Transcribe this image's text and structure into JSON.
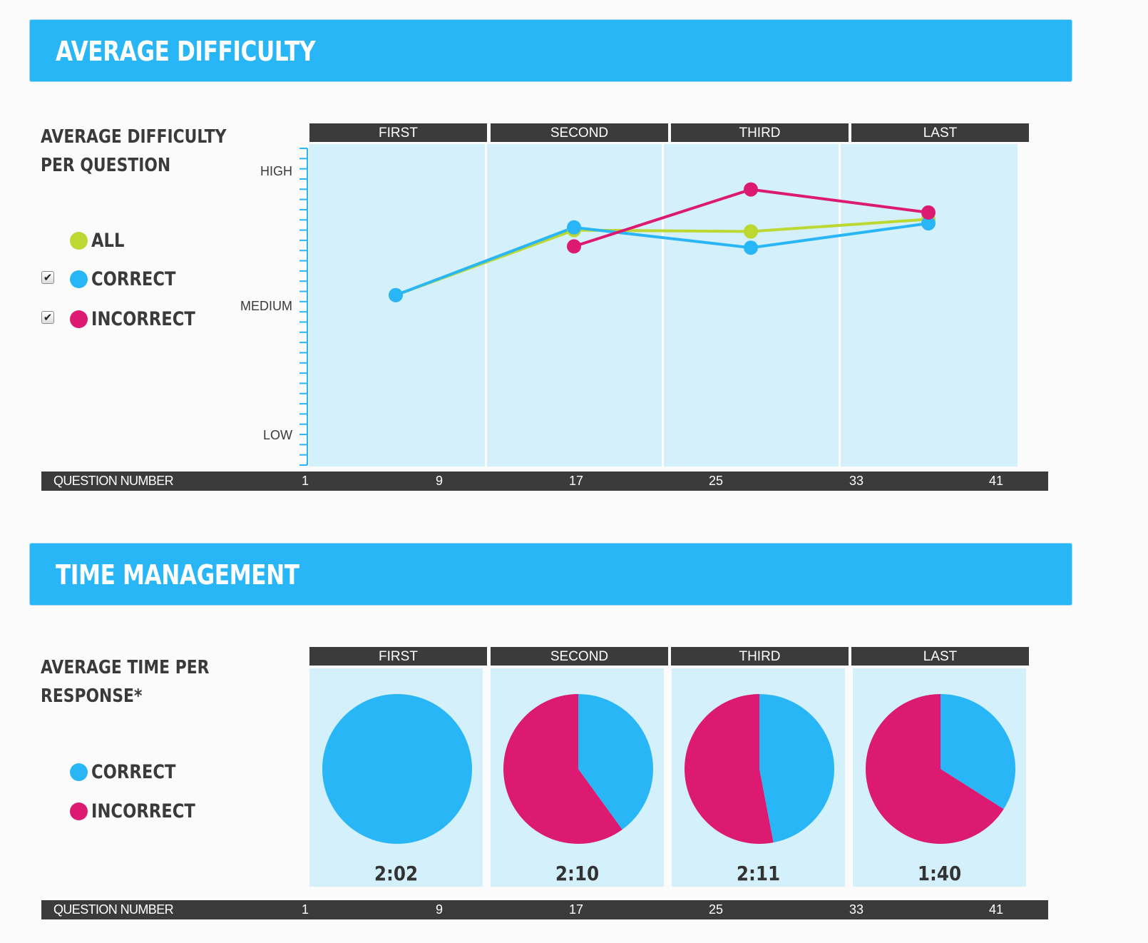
{
  "colors": {
    "all": "#bcd831",
    "correct": "#29b6f6",
    "incorrect": "#dc1a72",
    "banner": "#29b6f6",
    "panel": "#d4f0fb",
    "dark_bar": "#3b3b3b"
  },
  "difficulty": {
    "banner_title": "AVERAGE DIFFICULTY",
    "subtitle": "AVERAGE DIFFICULTY\nPER QUESTION",
    "legend": [
      {
        "key": "all",
        "label": "ALL",
        "has_checkbox": false
      },
      {
        "key": "correct",
        "label": "CORRECT",
        "has_checkbox": true,
        "checked": true
      },
      {
        "key": "incorrect",
        "label": "INCORRECT",
        "has_checkbox": true,
        "checked": true
      }
    ],
    "periods": [
      "FIRST",
      "SECOND",
      "THIRD",
      "LAST"
    ],
    "y_labels": [
      "HIGH",
      "MEDIUM",
      "LOW"
    ],
    "x_axis_title": "QUESTION NUMBER",
    "x_ticks": [
      "1",
      "9",
      "17",
      "25",
      "33",
      "41"
    ]
  },
  "time": {
    "banner_title": "TIME MANAGEMENT",
    "subtitle": "AVERAGE TIME PER\nRESPONSE*",
    "legend": [
      {
        "key": "correct",
        "label": "CORRECT"
      },
      {
        "key": "incorrect",
        "label": "INCORRECT"
      }
    ],
    "periods": [
      "FIRST",
      "SECOND",
      "THIRD",
      "LAST"
    ],
    "times": [
      "2:02",
      "2:10",
      "2:11",
      "1:40"
    ],
    "x_axis_title": "QUESTION NUMBER",
    "x_ticks": [
      "1",
      "9",
      "17",
      "25",
      "33",
      "41"
    ]
  },
  "chart_data": [
    {
      "type": "line",
      "title": "AVERAGE DIFFICULTY PER QUESTION",
      "xlabel": "QUESTION NUMBER",
      "ylabel": "",
      "categories": [
        "FIRST",
        "SECOND",
        "THIRD",
        "LAST"
      ],
      "y_scale": {
        "LOW": 0,
        "MEDIUM": 1,
        "HIGH": 2
      },
      "ylim": [
        -0.25,
        2.2
      ],
      "series": [
        {
          "name": "ALL",
          "color_key": "all",
          "values": [
            1.08,
            1.56,
            1.55,
            1.64
          ]
        },
        {
          "name": "CORRECT",
          "color_key": "correct",
          "values": [
            1.08,
            1.58,
            1.43,
            1.61
          ]
        },
        {
          "name": "INCORRECT",
          "color_key": "incorrect",
          "values": [
            null,
            1.44,
            1.86,
            1.69
          ]
        }
      ]
    },
    {
      "type": "pie",
      "title": "AVERAGE TIME PER RESPONSE*",
      "groups": [
        {
          "period": "FIRST",
          "time": "2:02",
          "slices": [
            {
              "name": "CORRECT",
              "value": 100
            },
            {
              "name": "INCORRECT",
              "value": 0
            }
          ]
        },
        {
          "period": "SECOND",
          "time": "2:10",
          "slices": [
            {
              "name": "CORRECT",
              "value": 40
            },
            {
              "name": "INCORRECT",
              "value": 60
            }
          ]
        },
        {
          "period": "THIRD",
          "time": "2:11",
          "slices": [
            {
              "name": "CORRECT",
              "value": 47
            },
            {
              "name": "INCORRECT",
              "value": 53
            }
          ]
        },
        {
          "period": "LAST",
          "time": "1:40",
          "slices": [
            {
              "name": "CORRECT",
              "value": 34
            },
            {
              "name": "INCORRECT",
              "value": 66
            }
          ]
        }
      ]
    }
  ]
}
